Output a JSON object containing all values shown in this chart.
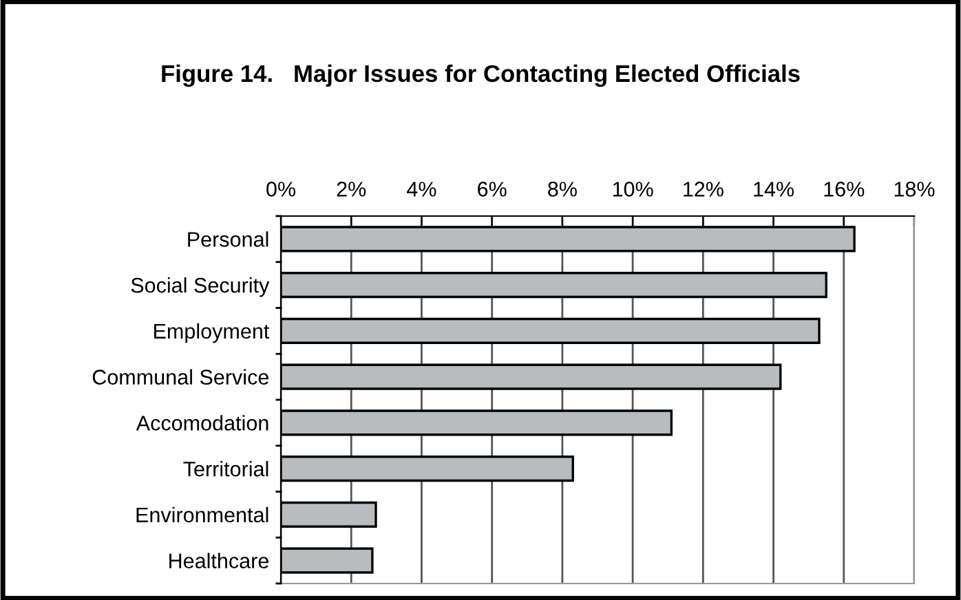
{
  "chart_data": {
    "type": "bar",
    "orientation": "horizontal",
    "title": "Figure 14.   Major Issues for Contacting Elected Officials",
    "categories": [
      "Personal",
      "Social Security",
      "Employment",
      "Communal Service",
      "Accomodation",
      "Territorial",
      "Environmental",
      "Healthcare"
    ],
    "values": [
      16.3,
      15.5,
      15.3,
      14.2,
      11.1,
      8.3,
      2.7,
      2.6
    ],
    "color": "#b8bcbe",
    "xlim": [
      0,
      18
    ],
    "xticks": [
      {
        "value": 0,
        "label": "0%"
      },
      {
        "value": 2,
        "label": "2%"
      },
      {
        "value": 4,
        "label": "4%"
      },
      {
        "value": 6,
        "label": "6%"
      },
      {
        "value": 8,
        "label": "8%"
      },
      {
        "value": 10,
        "label": "10%"
      },
      {
        "value": 12,
        "label": "12%"
      },
      {
        "value": 14,
        "label": "14%"
      },
      {
        "value": 16,
        "label": "16%"
      },
      {
        "value": 18,
        "label": "18%"
      }
    ],
    "grid": "x"
  }
}
